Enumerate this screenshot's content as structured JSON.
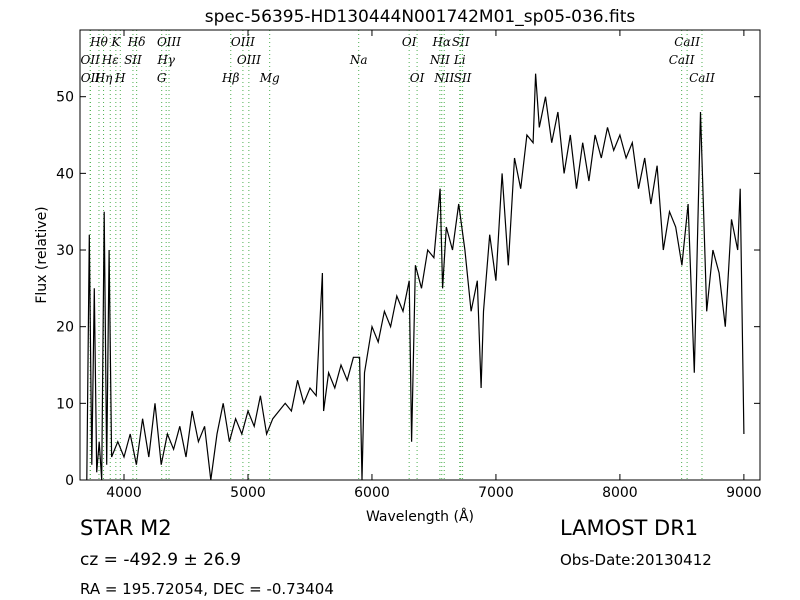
{
  "chart_data": {
    "type": "line",
    "title": "spec-56395-HD130444N001742M01_sp05-036.fits",
    "x_label": "Wavelength (Å)",
    "y_label": "Flux (relative)",
    "xlim": [
      3645,
      9130
    ],
    "ylim": [
      0,
      58.7
    ],
    "xticks": [
      4000,
      5000,
      6000,
      7000,
      8000,
      9000
    ],
    "yticks": [
      0,
      10,
      20,
      30,
      40,
      50
    ],
    "grid": false,
    "series": [
      {
        "color": "#000000",
        "x": [
          3700,
          3720,
          3740,
          3760,
          3780,
          3800,
          3820,
          3840,
          3860,
          3880,
          3900,
          3950,
          4000,
          4050,
          4100,
          4150,
          4200,
          4250,
          4300,
          4350,
          4400,
          4450,
          4500,
          4550,
          4600,
          4650,
          4700,
          4750,
          4800,
          4850,
          4900,
          4950,
          5000,
          5050,
          5100,
          5150,
          5200,
          5250,
          5300,
          5350,
          5400,
          5450,
          5500,
          5550,
          5600,
          5610,
          5650,
          5700,
          5750,
          5800,
          5850,
          5900,
          5920,
          5940,
          6000,
          6050,
          6100,
          6150,
          6200,
          6250,
          6300,
          6320,
          6350,
          6400,
          6450,
          6500,
          6550,
          6570,
          6600,
          6650,
          6700,
          6750,
          6800,
          6850,
          6880,
          6900,
          6950,
          7000,
          7050,
          7100,
          7150,
          7200,
          7250,
          7300,
          7320,
          7350,
          7400,
          7450,
          7500,
          7550,
          7600,
          7650,
          7700,
          7750,
          7800,
          7850,
          7900,
          7950,
          8000,
          8050,
          8100,
          8150,
          8200,
          8250,
          8300,
          8350,
          8400,
          8450,
          8500,
          8550,
          8600,
          8650,
          8700,
          8750,
          8800,
          8850,
          8900,
          8950,
          8970,
          9000
        ],
        "values": [
          0,
          32,
          2,
          25,
          1,
          5,
          0,
          35,
          2,
          30,
          3,
          5,
          3,
          6,
          2,
          8,
          3,
          10,
          2,
          6,
          4,
          7,
          3,
          9,
          5,
          7,
          0,
          6,
          10,
          5,
          8,
          6,
          9,
          7,
          11,
          6,
          8,
          9,
          10,
          9,
          13,
          10,
          12,
          11,
          27,
          9,
          14,
          12,
          15,
          13,
          16,
          16,
          0,
          14,
          20,
          18,
          22,
          20,
          24,
          22,
          26,
          5,
          28,
          25,
          30,
          29,
          38,
          25,
          33,
          30,
          36,
          30,
          22,
          26,
          12,
          22,
          32,
          26,
          40,
          28,
          42,
          38,
          45,
          44,
          53,
          46,
          50,
          44,
          48,
          40,
          45,
          38,
          44,
          39,
          45,
          42,
          46,
          43,
          45,
          42,
          44,
          38,
          42,
          36,
          41,
          30,
          35,
          33,
          28,
          36,
          14,
          48,
          22,
          30,
          27,
          20,
          34,
          30,
          38,
          6
        ]
      }
    ],
    "line_color": "#4caf50",
    "line_rows": [
      [
        {
          "label": "Hθ",
          "wavelength": 3798
        },
        {
          "label": "K",
          "wavelength": 3934
        },
        {
          "label": "Hδ",
          "wavelength": 4102
        },
        {
          "label": "OIII",
          "wavelength": 4363
        },
        {
          "label": "OIII",
          "wavelength": 4959
        },
        {
          "label": "OI",
          "wavelength": 6300
        },
        {
          "label": "Hα",
          "wavelength": 6563
        },
        {
          "label": "SII",
          "wavelength": 6716
        },
        {
          "label": "CaII",
          "wavelength": 8542
        }
      ],
      [
        {
          "label": "OII",
          "wavelength": 3727
        },
        {
          "label": "Hε",
          "wavelength": 3889
        },
        {
          "label": "SII",
          "wavelength": 4072
        },
        {
          "label": "Hγ",
          "wavelength": 4340
        },
        {
          "label": "OIII",
          "wavelength": 5007
        },
        {
          "label": "Na",
          "wavelength": 5893
        },
        {
          "label": "NII",
          "wavelength": 6548
        },
        {
          "label": "Li",
          "wavelength": 6708
        },
        {
          "label": "CaII",
          "wavelength": 8498
        }
      ],
      [
        {
          "label": "OII",
          "wavelength": 3729
        },
        {
          "label": "Hη",
          "wavelength": 3835
        },
        {
          "label": "H",
          "wavelength": 3970
        },
        {
          "label": "G",
          "wavelength": 4304
        },
        {
          "label": "Hβ",
          "wavelength": 4861
        },
        {
          "label": "Mg",
          "wavelength": 5175
        },
        {
          "label": "OI",
          "wavelength": 6364
        },
        {
          "label": "NII",
          "wavelength": 6583
        },
        {
          "label": "SII",
          "wavelength": 6731
        },
        {
          "label": "CaII",
          "wavelength": 8662
        }
      ]
    ],
    "info": {
      "class": "STAR   M2",
      "redshift": "cz = -492.9 ± 26.9",
      "coords": "RA = 195.72054, DEC = -0.73404",
      "survey": "LAMOST DR1",
      "date": "Obs-Date:20130412"
    }
  }
}
